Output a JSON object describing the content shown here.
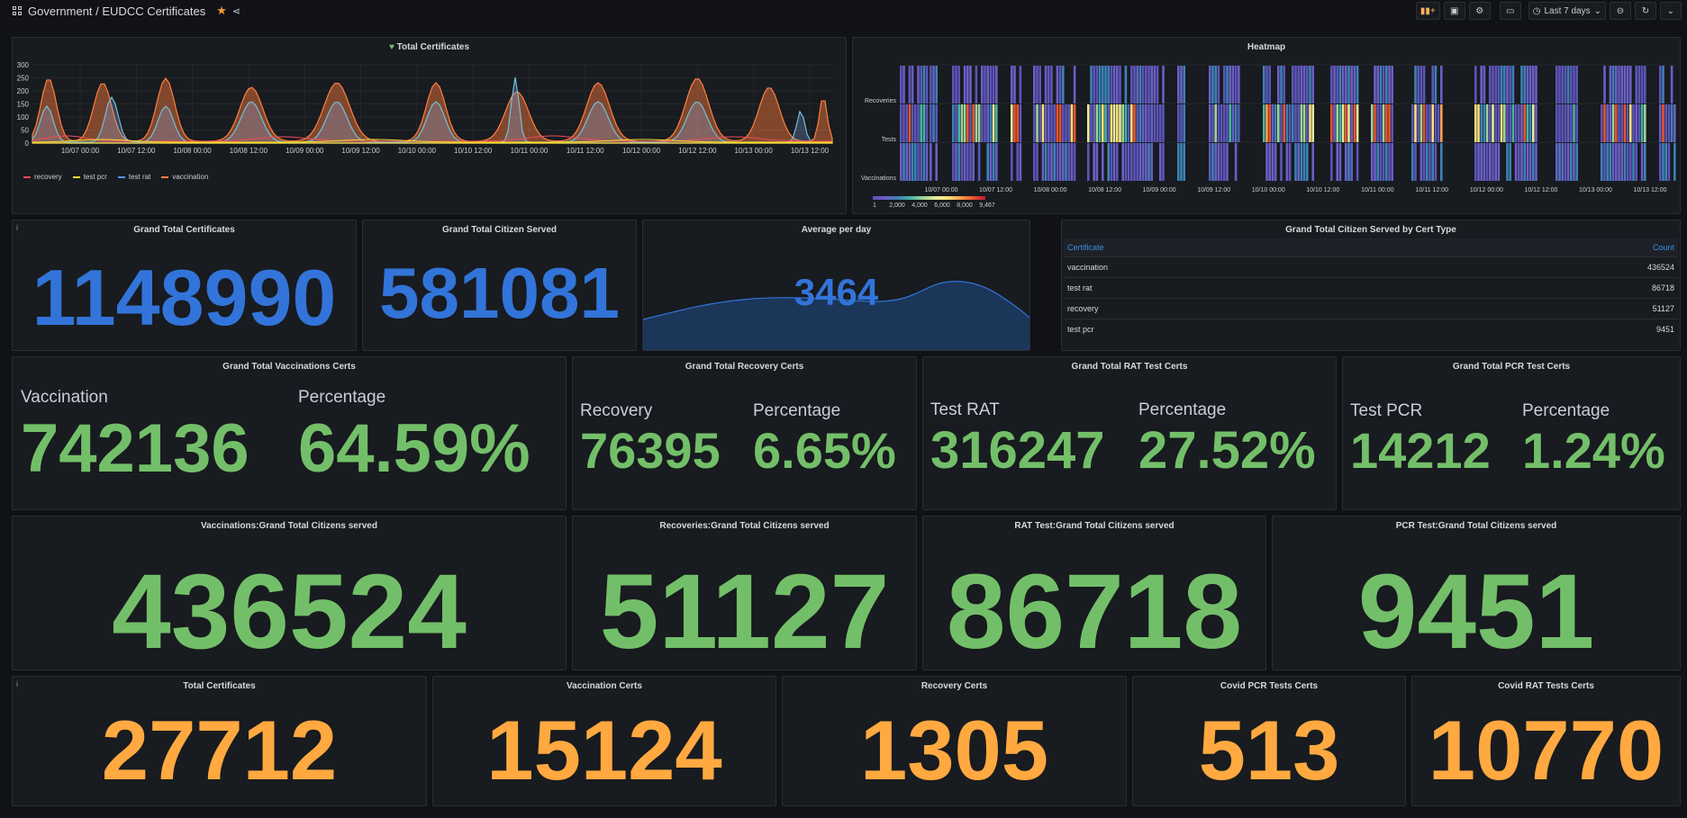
{
  "header": {
    "breadcrumb": "Government / EUDCC Certificates",
    "time_range": "Last 7 days"
  },
  "total_certs_panel": {
    "title": "Total Certificates",
    "y_ticks": [
      "300",
      "250",
      "200",
      "150",
      "100",
      "50",
      "0"
    ],
    "x_ticks": [
      "10/07 00:00",
      "10/07 12:00",
      "10/08 00:00",
      "10/08 12:00",
      "10/09 00:00",
      "10/09 12:00",
      "10/10 00:00",
      "10/10 12:00",
      "10/11 00:00",
      "10/11 12:00",
      "10/12 00:00",
      "10/12 12:00",
      "10/13 00:00",
      "10/13 12:00"
    ],
    "legend": [
      {
        "name": "recovery",
        "color": "#f2495c"
      },
      {
        "name": "test pcr",
        "color": "#fade2a"
      },
      {
        "name": "test rat",
        "color": "#5794f2"
      },
      {
        "name": "vaccination",
        "color": "#ff7f3f"
      }
    ]
  },
  "heatmap_panel": {
    "title": "Heatmap",
    "rows": [
      "Recoveries",
      "Tests",
      "Vaccinations"
    ],
    "x_ticks": [
      "10/07 00:00",
      "10/07 12:00",
      "10/08 00:00",
      "10/08 12:00",
      "10/09 00:00",
      "10/09 12:00",
      "10/10 00:00",
      "10/10 12:00",
      "10/11 00:00",
      "10/11 12:00",
      "10/12 00:00",
      "10/12 12:00",
      "10/13 00:00",
      "10/13 12:00"
    ],
    "scale_ticks": [
      "1",
      "2,000",
      "4,000",
      "6,000",
      "8,000",
      "9,467"
    ]
  },
  "grand_total": {
    "title": "Grand Total Certificates",
    "value": "1148990"
  },
  "citizen_served": {
    "title": "Grand Total Citizen Served",
    "value": "581081"
  },
  "avg_per_day": {
    "title": "Average per day",
    "value": "3464"
  },
  "by_cert_type": {
    "title": "Grand Total Citizen Served by Cert Type",
    "col_cert": "Certificate",
    "col_count": "Count",
    "rows": [
      {
        "cert": "vaccination",
        "count": "436524"
      },
      {
        "cert": "test rat",
        "count": "86718"
      },
      {
        "cert": "recovery",
        "count": "51127"
      },
      {
        "cert": "test pcr",
        "count": "9451"
      }
    ]
  },
  "vacc_certs": {
    "title": "Grand Total Vaccinations Certs",
    "label1": "Vaccination",
    "value1": "742136",
    "label2": "Percentage",
    "value2": "64.59%"
  },
  "recov_certs": {
    "title": "Grand Total Recovery Certs",
    "label1": "Recovery",
    "value1": "76395",
    "label2": "Percentage",
    "value2": "6.65%"
  },
  "rat_certs": {
    "title": "Grand Total RAT Test Certs",
    "label1": "Test RAT",
    "value1": "316247",
    "label2": "Percentage",
    "value2": "27.52%"
  },
  "pcr_certs": {
    "title": "Grand Total PCR Test Certs",
    "label1": "Test PCR",
    "value1": "14212",
    "label2": "Percentage",
    "value2": "1.24%"
  },
  "vacc_citizens": {
    "title": "Vaccinations:Grand Total Citizens served",
    "value": "436524"
  },
  "recov_citizens": {
    "title": "Recoveries:Grand Total Citizens served",
    "value": "51127"
  },
  "rat_citizens": {
    "title": "RAT Test:Grand Total Citizens served",
    "value": "86718"
  },
  "pcr_citizens": {
    "title": "PCR Test:Grand Total Citizens served",
    "value": "9451"
  },
  "total_certificates": {
    "title": "Total Certificates",
    "value": "27712"
  },
  "vacc_period": {
    "title": "Vaccination Certs",
    "value": "15124"
  },
  "recov_period": {
    "title": "Recovery Certs",
    "value": "1305"
  },
  "pcr_period": {
    "title": "Covid PCR Tests Certs",
    "value": "513"
  },
  "rat_period": {
    "title": "Covid RAT Tests Certs",
    "value": "10770"
  }
}
